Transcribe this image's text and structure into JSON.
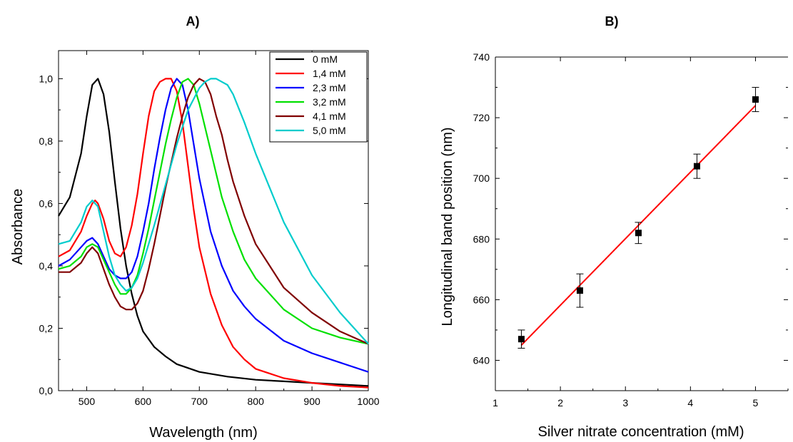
{
  "chart_data": [
    {
      "panel_label": "A)",
      "type": "line",
      "xlabel": "Wavelength (nm)",
      "ylabel": "Absorbance",
      "xlim": [
        450,
        1000
      ],
      "ylim": [
        0.0,
        1.09
      ],
      "xticks": [
        500,
        600,
        700,
        800,
        900,
        1000
      ],
      "yticks": [
        0.0,
        0.2,
        0.4,
        0.6,
        0.8,
        1.0
      ],
      "ytick_labels": [
        "0,0",
        "0,2",
        "0,4",
        "0,6",
        "0,8",
        "1,0"
      ],
      "grid": false,
      "legend_position": "top-right",
      "series": [
        {
          "name": "0 mM",
          "color": "#000000",
          "x": [
            450,
            470,
            490,
            500,
            510,
            520,
            530,
            540,
            550,
            560,
            570,
            580,
            590,
            600,
            620,
            640,
            660,
            700,
            750,
            800,
            850,
            900,
            950,
            1000
          ],
          "y": [
            0.56,
            0.62,
            0.76,
            0.88,
            0.98,
            1.0,
            0.95,
            0.83,
            0.67,
            0.52,
            0.4,
            0.31,
            0.24,
            0.19,
            0.14,
            0.11,
            0.085,
            0.06,
            0.045,
            0.035,
            0.03,
            0.025,
            0.02,
            0.015
          ]
        },
        {
          "name": "1,4 mM",
          "color": "#ff0000",
          "x": [
            450,
            470,
            490,
            500,
            510,
            515,
            520,
            530,
            540,
            550,
            560,
            570,
            580,
            590,
            600,
            610,
            620,
            630,
            640,
            650,
            660,
            670,
            680,
            690,
            700,
            720,
            740,
            760,
            780,
            800,
            850,
            900,
            950,
            1000
          ],
          "y": [
            0.43,
            0.45,
            0.51,
            0.56,
            0.6,
            0.61,
            0.6,
            0.55,
            0.48,
            0.44,
            0.43,
            0.46,
            0.53,
            0.63,
            0.76,
            0.88,
            0.96,
            0.99,
            1.0,
            1.0,
            0.96,
            0.86,
            0.72,
            0.58,
            0.46,
            0.31,
            0.21,
            0.14,
            0.1,
            0.07,
            0.04,
            0.025,
            0.015,
            0.01
          ]
        },
        {
          "name": "2,3 mM",
          "color": "#0000ff",
          "x": [
            450,
            470,
            490,
            500,
            510,
            520,
            530,
            540,
            550,
            560,
            570,
            580,
            590,
            600,
            610,
            620,
            630,
            640,
            650,
            660,
            670,
            680,
            690,
            700,
            720,
            740,
            760,
            780,
            800,
            850,
            900,
            950,
            1000
          ],
          "y": [
            0.4,
            0.42,
            0.46,
            0.48,
            0.49,
            0.47,
            0.43,
            0.39,
            0.37,
            0.36,
            0.36,
            0.38,
            0.43,
            0.51,
            0.6,
            0.71,
            0.81,
            0.9,
            0.97,
            1.0,
            0.98,
            0.9,
            0.79,
            0.68,
            0.51,
            0.4,
            0.32,
            0.27,
            0.23,
            0.16,
            0.12,
            0.09,
            0.06
          ]
        },
        {
          "name": "3,2 mM",
          "color": "#00e000",
          "x": [
            450,
            470,
            490,
            500,
            510,
            520,
            530,
            540,
            550,
            560,
            570,
            580,
            590,
            600,
            610,
            620,
            630,
            640,
            650,
            660,
            670,
            680,
            690,
            700,
            720,
            740,
            760,
            780,
            800,
            850,
            900,
            950,
            1000
          ],
          "y": [
            0.39,
            0.4,
            0.43,
            0.46,
            0.47,
            0.46,
            0.42,
            0.38,
            0.34,
            0.31,
            0.31,
            0.33,
            0.37,
            0.44,
            0.52,
            0.61,
            0.7,
            0.79,
            0.87,
            0.94,
            0.99,
            1.0,
            0.98,
            0.92,
            0.77,
            0.62,
            0.51,
            0.42,
            0.36,
            0.26,
            0.2,
            0.17,
            0.15
          ]
        },
        {
          "name": "4,1 mM",
          "color": "#800000",
          "x": [
            450,
            470,
            490,
            500,
            510,
            520,
            530,
            540,
            550,
            560,
            570,
            580,
            590,
            600,
            610,
            620,
            630,
            640,
            650,
            660,
            670,
            680,
            690,
            700,
            710,
            720,
            730,
            740,
            750,
            760,
            780,
            800,
            850,
            900,
            950,
            1000
          ],
          "y": [
            0.38,
            0.38,
            0.41,
            0.44,
            0.46,
            0.44,
            0.39,
            0.34,
            0.3,
            0.27,
            0.26,
            0.26,
            0.28,
            0.32,
            0.39,
            0.47,
            0.56,
            0.65,
            0.73,
            0.81,
            0.88,
            0.94,
            0.98,
            1.0,
            0.99,
            0.95,
            0.88,
            0.82,
            0.74,
            0.67,
            0.56,
            0.47,
            0.33,
            0.25,
            0.19,
            0.15
          ]
        },
        {
          "name": "5,0 mM",
          "color": "#00cccc",
          "x": [
            450,
            470,
            490,
            500,
            510,
            520,
            530,
            540,
            550,
            560,
            570,
            580,
            590,
            600,
            620,
            640,
            660,
            680,
            700,
            710,
            720,
            730,
            740,
            750,
            760,
            780,
            800,
            850,
            900,
            950,
            1000
          ],
          "y": [
            0.47,
            0.48,
            0.54,
            0.59,
            0.61,
            0.59,
            0.51,
            0.43,
            0.37,
            0.34,
            0.32,
            0.33,
            0.36,
            0.41,
            0.53,
            0.66,
            0.79,
            0.9,
            0.97,
            0.99,
            1.0,
            1.0,
            0.99,
            0.98,
            0.95,
            0.86,
            0.76,
            0.54,
            0.37,
            0.25,
            0.15
          ]
        }
      ]
    },
    {
      "panel_label": "B)",
      "type": "scatter",
      "xlabel": "Silver nitrate concentration (mM)",
      "ylabel": "Longitudinal band position (nm)",
      "xlim": [
        1.0,
        5.5
      ],
      "ylim": [
        630,
        740
      ],
      "xticks": [
        1,
        2,
        3,
        4,
        5
      ],
      "yticks": [
        640,
        660,
        680,
        700,
        720,
        740
      ],
      "grid": false,
      "series": [
        {
          "marker_color": "#000000",
          "x": [
            1.4,
            2.3,
            3.2,
            4.1,
            5.0
          ],
          "y": [
            647,
            663,
            682,
            704,
            726
          ],
          "error": [
            3,
            5.5,
            3.5,
            4,
            4
          ]
        }
      ],
      "fit_line": {
        "color": "#ff0000",
        "x": [
          1.4,
          5.0
        ],
        "y": [
          645,
          724
        ]
      }
    }
  ]
}
